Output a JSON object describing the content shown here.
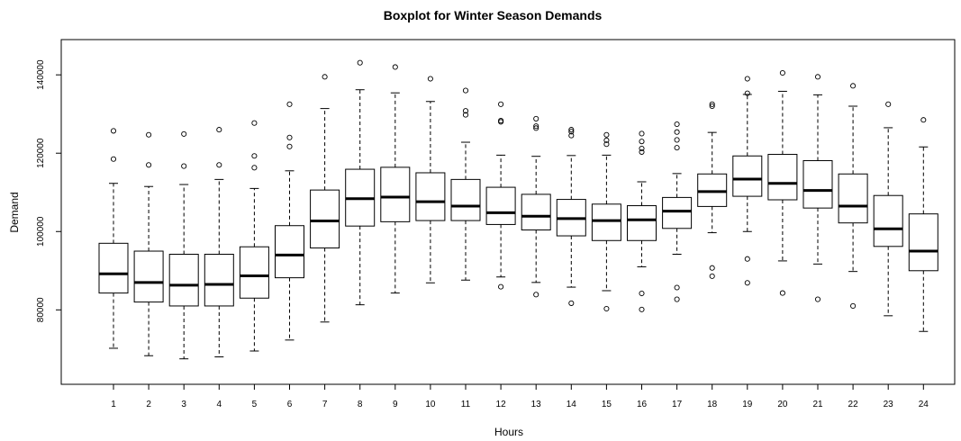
{
  "chart_data": {
    "type": "boxplot",
    "title": "Boxplot for Winter Season Demands",
    "xlabel": "Hours",
    "ylabel": "Demand",
    "ylim": [
      61000,
      149000
    ],
    "yticks": [
      80000,
      100000,
      120000,
      140000
    ],
    "ytick_labels": [
      "80000",
      "100000",
      "120000",
      "140000"
    ],
    "grid": false,
    "categories": [
      "1",
      "2",
      "3",
      "4",
      "5",
      "6",
      "7",
      "8",
      "9",
      "10",
      "11",
      "12",
      "13",
      "14",
      "15",
      "16",
      "17",
      "18",
      "19",
      "20",
      "21",
      "22",
      "23",
      "24"
    ],
    "boxes": [
      {
        "whisker_low": 70200,
        "q1": 84300,
        "median": 89200,
        "q3": 97000,
        "whisker_high": 112300,
        "outliers": [
          118500,
          125700
        ]
      },
      {
        "whisker_low": 68300,
        "q1": 82000,
        "median": 87000,
        "q3": 95000,
        "whisker_high": 111500,
        "outliers": [
          117000,
          124700
        ]
      },
      {
        "whisker_low": 67500,
        "q1": 81000,
        "median": 86300,
        "q3": 94200,
        "whisker_high": 112000,
        "outliers": [
          116700,
          124900
        ]
      },
      {
        "whisker_low": 68000,
        "q1": 81000,
        "median": 86500,
        "q3": 94200,
        "whisker_high": 113300,
        "outliers": [
          117000,
          126000
        ]
      },
      {
        "whisker_low": 69500,
        "q1": 83000,
        "median": 88700,
        "q3": 96100,
        "whisker_high": 111000,
        "outliers": [
          116300,
          119300,
          127700
        ]
      },
      {
        "whisker_low": 72300,
        "q1": 88200,
        "median": 94000,
        "q3": 101500,
        "whisker_high": 115500,
        "outliers": [
          121700,
          124000,
          132500
        ]
      },
      {
        "whisker_low": 76900,
        "q1": 95800,
        "median": 102700,
        "q3": 110600,
        "whisker_high": 131400,
        "outliers": [
          139500
        ]
      },
      {
        "whisker_low": 81300,
        "q1": 101400,
        "median": 108400,
        "q3": 115900,
        "whisker_high": 136200,
        "outliers": [
          143100
        ]
      },
      {
        "whisker_low": 84300,
        "q1": 102500,
        "median": 108800,
        "q3": 116400,
        "whisker_high": 135400,
        "outliers": [
          142000
        ]
      },
      {
        "whisker_low": 86900,
        "q1": 102800,
        "median": 107600,
        "q3": 115000,
        "whisker_high": 133200,
        "outliers": [
          139000
        ]
      },
      {
        "whisker_low": 87600,
        "q1": 102800,
        "median": 106500,
        "q3": 113300,
        "whisker_high": 122800,
        "outliers": [
          129800,
          130800,
          136000
        ]
      },
      {
        "whisker_low": 88400,
        "q1": 101800,
        "median": 104800,
        "q3": 111300,
        "whisker_high": 119500,
        "outliers": [
          85900,
          128000,
          128300,
          132500
        ]
      },
      {
        "whisker_low": 87000,
        "q1": 100400,
        "median": 103900,
        "q3": 109500,
        "whisker_high": 119200,
        "outliers": [
          83900,
          126400,
          126900,
          128800
        ]
      },
      {
        "whisker_low": 85800,
        "q1": 98900,
        "median": 103300,
        "q3": 108200,
        "whisker_high": 119400,
        "outliers": [
          81700,
          124500,
          125500,
          126000
        ]
      },
      {
        "whisker_low": 84900,
        "q1": 97700,
        "median": 102800,
        "q3": 107000,
        "whisker_high": 119500,
        "outliers": [
          80300,
          122300,
          123300,
          124700
        ]
      },
      {
        "whisker_low": 91000,
        "q1": 97700,
        "median": 103000,
        "q3": 106600,
        "whisker_high": 112700,
        "outliers": [
          80100,
          84200,
          120300,
          121200,
          123000,
          125000
        ]
      },
      {
        "whisker_low": 94200,
        "q1": 100800,
        "median": 105200,
        "q3": 108700,
        "whisker_high": 114800,
        "outliers": [
          82700,
          85700,
          121400,
          123400,
          125400,
          127400
        ]
      },
      {
        "whisker_low": 99700,
        "q1": 106400,
        "median": 110200,
        "q3": 114700,
        "whisker_high": 125300,
        "outliers": [
          88600,
          90700,
          132000,
          132500
        ]
      },
      {
        "whisker_low": 100000,
        "q1": 109000,
        "median": 113400,
        "q3": 119300,
        "whisker_high": 135000,
        "outliers": [
          86900,
          93000,
          135300,
          139000
        ]
      },
      {
        "whisker_low": 92500,
        "q1": 108100,
        "median": 112300,
        "q3": 119700,
        "whisker_high": 135800,
        "outliers": [
          84300,
          140500
        ]
      },
      {
        "whisker_low": 91700,
        "q1": 106000,
        "median": 110500,
        "q3": 118100,
        "whisker_high": 134900,
        "outliers": [
          82700,
          139500
        ]
      },
      {
        "whisker_low": 89800,
        "q1": 102200,
        "median": 106500,
        "q3": 114700,
        "whisker_high": 132000,
        "outliers": [
          81000,
          137200
        ]
      },
      {
        "whisker_low": 78500,
        "q1": 96200,
        "median": 100700,
        "q3": 109200,
        "whisker_high": 126500,
        "outliers": [
          132500
        ]
      },
      {
        "whisker_low": 74500,
        "q1": 90000,
        "median": 95000,
        "q3": 104500,
        "whisker_high": 121600,
        "outliers": [
          128500
        ]
      }
    ]
  }
}
